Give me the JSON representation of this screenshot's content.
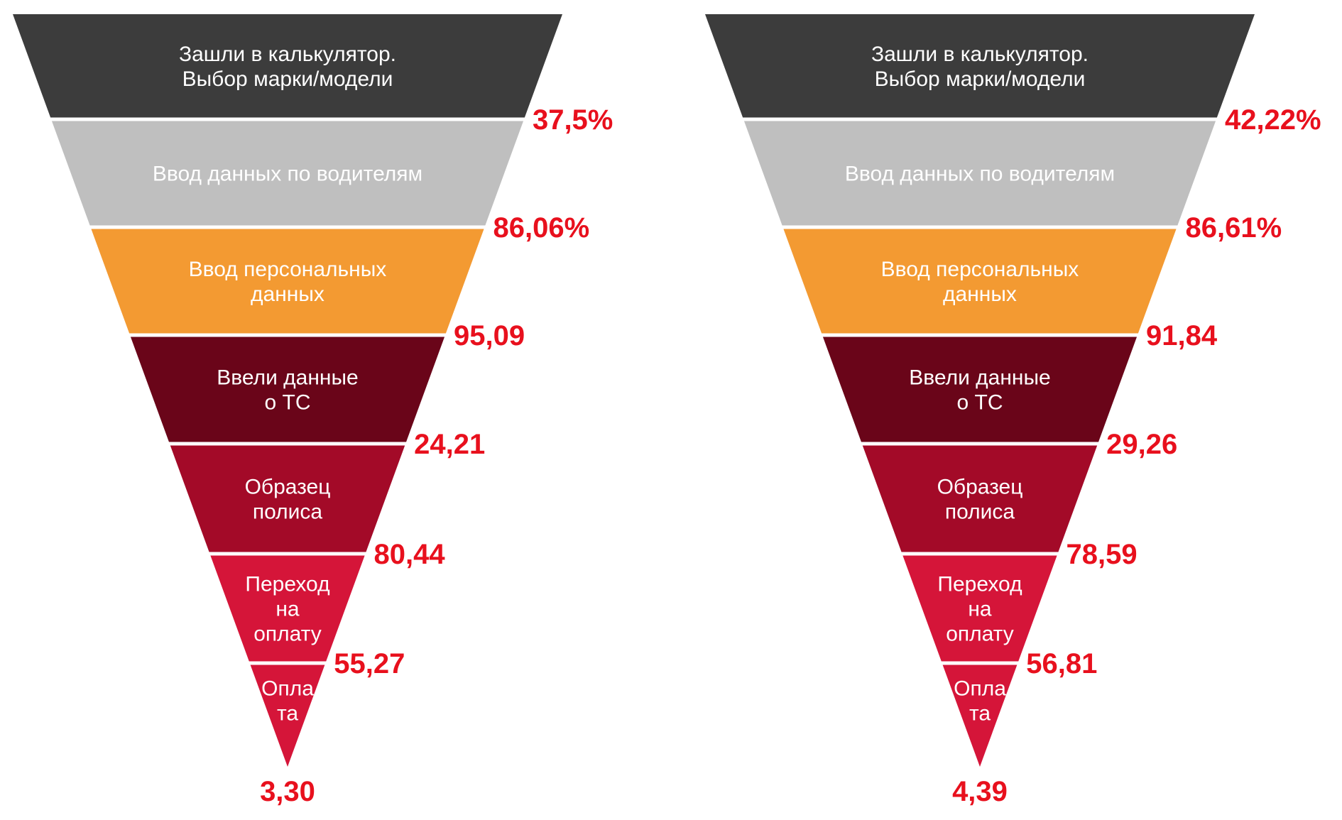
{
  "stage_colors": [
    "#3c3c3c",
    "#bfbfbf",
    "#f39a32",
    "#6a0519",
    "#a30a28",
    "#d51539",
    "#d51539"
  ],
  "funnels": [
    {
      "stages": [
        {
          "lines": [
            "Зашли в калькулятор.",
            "Выбор марки/модели"
          ]
        },
        {
          "lines": [
            "Ввод данных по водителям"
          ]
        },
        {
          "lines": [
            "Ввод персональных",
            "данных"
          ]
        },
        {
          "lines": [
            "Ввели данные",
            "о ТС"
          ]
        },
        {
          "lines": [
            "Образец",
            "полиса"
          ]
        },
        {
          "lines": [
            "Переход",
            "на",
            "оплату"
          ]
        },
        {
          "lines": [
            "Опла",
            "та"
          ]
        }
      ],
      "rates": [
        "37,5%",
        "86,06%",
        "95,09",
        "24,21",
        "80,44",
        "55,27"
      ],
      "total": "3,30"
    },
    {
      "stages": [
        {
          "lines": [
            "Зашли в калькулятор.",
            "Выбор марки/модели"
          ]
        },
        {
          "lines": [
            "Ввод данных по водителям"
          ]
        },
        {
          "lines": [
            "Ввод персональных",
            "данных"
          ]
        },
        {
          "lines": [
            "Ввели данные",
            "о ТС"
          ]
        },
        {
          "lines": [
            "Образец",
            "полиса"
          ]
        },
        {
          "lines": [
            "Переход",
            "на",
            "оплату"
          ]
        },
        {
          "lines": [
            "Опла",
            "та"
          ]
        }
      ],
      "rates": [
        "42,22%",
        "86,61%",
        "91,84",
        "29,26",
        "78,59",
        "56,81"
      ],
      "total": "4,39"
    }
  ]
}
